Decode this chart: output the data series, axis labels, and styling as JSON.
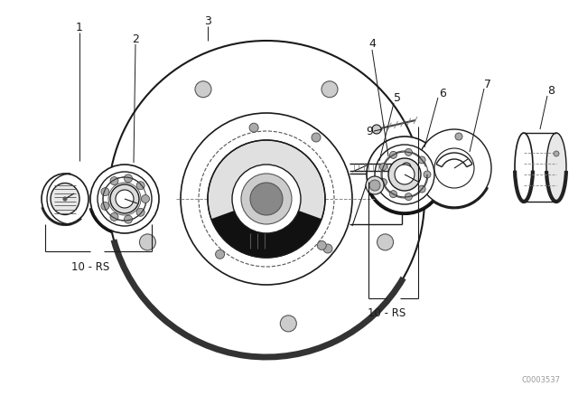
{
  "background_color": "#ffffff",
  "line_color": "#1a1a1a",
  "watermark": "C0003537",
  "figsize": [
    6.4,
    4.48
  ],
  "dpi": 100
}
